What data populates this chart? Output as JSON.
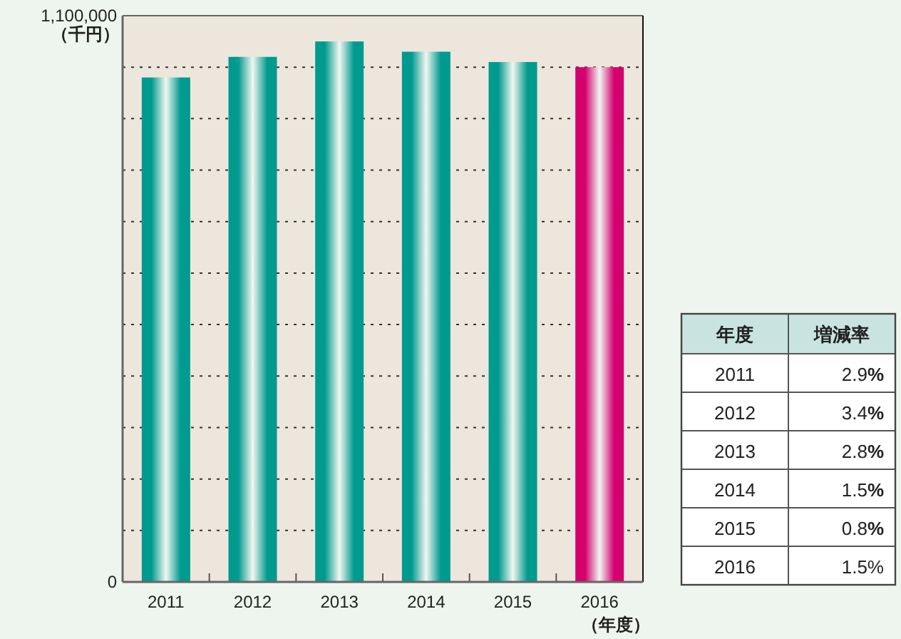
{
  "chart_data": [
    {
      "type": "bar",
      "xlabel": "（年度）",
      "ylabel": "（千円）",
      "categories": [
        "2011",
        "2012",
        "2013",
        "2014",
        "2015",
        "2016"
      ],
      "values": [
        980000,
        1020000,
        1050000,
        1030000,
        1010000,
        1000000
      ],
      "colors": [
        "#009a8f",
        "#009a8f",
        "#009a8f",
        "#009a8f",
        "#009a8f",
        "#d4006e"
      ],
      "ylim": [
        0,
        1100000
      ],
      "yticks": [
        0,
        {
          "value": 100000,
          "label": null
        },
        {
          "value": 200000,
          "label": null
        },
        {
          "value": 300000,
          "label": null
        },
        {
          "value": 400000,
          "label": null
        },
        {
          "value": 500000,
          "label": null
        },
        {
          "value": 600000,
          "label": null
        },
        {
          "value": 700000,
          "label": null
        },
        {
          "value": 800000,
          "label": null
        },
        {
          "value": 900000,
          "label": null
        },
        {
          "value": 1000000,
          "label": null
        },
        {
          "value": 1100000,
          "label": "1,100,000"
        }
      ],
      "grid": "y",
      "legend": false,
      "annotations": [
        "年度",
        "増減率",
        "2011",
        "2.9**%**",
        "2012",
        "3.4**%**",
        "2013",
        "2.8**%**",
        "2014",
        "1.5**%**",
        "2015",
        "0.8**%**",
        "2016",
        "1.5%"
      ]
    }
  ]
}
